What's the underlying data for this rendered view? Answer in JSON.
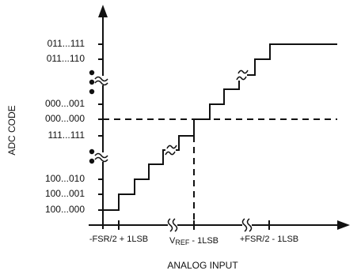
{
  "axis_title_y": "ADC CODE",
  "axis_title_x": "ANALOG INPUT",
  "y_labels": [
    "011...111",
    "011...110",
    "000...001",
    "000...000",
    "111...111",
    "100...010",
    "100...001",
    "100...000"
  ],
  "x_labels": {
    "left": "-FSR/2 + 1LSB",
    "middle": {
      "prefix": "V",
      "subscript": "REF",
      "suffix": " - 1LSB"
    },
    "right": "+FSR/2 - 1LSB"
  }
}
